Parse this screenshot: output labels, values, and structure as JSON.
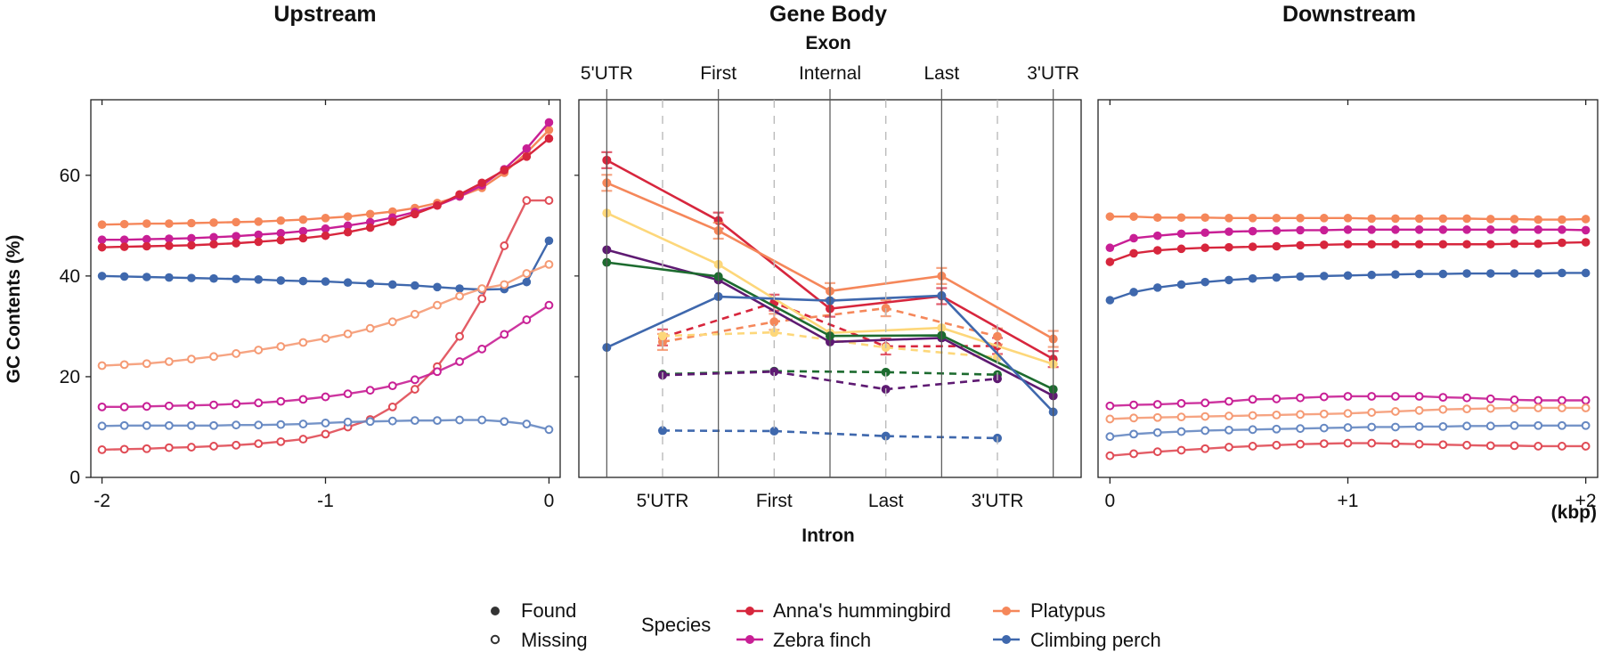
{
  "colors": {
    "Anna's hummingbird": "#d7263d",
    "Zebra finch": "#c81f95",
    "Platypus": "#f5875a",
    "Climbing perch": "#3f68ad",
    "Extra yellow": "#fdd77a",
    "Extra green": "#1d6b2f",
    "Extra purple": "#5e1a72",
    "Missing Anna's hummingbird": "#e04b55",
    "Missing Platypus": "#f59a74",
    "Missing Climbing perch": "#6688c2"
  },
  "chart_data": {
    "type": "line",
    "ylabel": "GC Contents (%)",
    "ylim": [
      0,
      75
    ],
    "yticks": [
      "0",
      "20",
      "40",
      "60"
    ],
    "panels": [
      {
        "title": "Upstream",
        "x_ticks": [
          "-2",
          "-1",
          "0"
        ],
        "x_tick_values": [
          -2,
          -1,
          0
        ],
        "xlim": [
          -2.05,
          0.05
        ],
        "x": [
          -2,
          -1.9,
          -1.8,
          -1.7,
          -1.6,
          -1.5,
          -1.4,
          -1.3,
          -1.2,
          -1.1,
          -1,
          -0.9,
          -0.8,
          -0.7,
          -0.6,
          -0.5,
          -0.4,
          -0.3,
          -0.2,
          -0.1,
          0
        ],
        "series": [
          {
            "name": "Platypus",
            "status": "Found",
            "values": [
              50.2,
              50.3,
              50.4,
              50.4,
              50.5,
              50.6,
              50.7,
              50.8,
              51.0,
              51.2,
              51.5,
              51.8,
              52.3,
              52.8,
              53.5,
              54.5,
              55.8,
              57.5,
              60.5,
              64.5,
              69
            ]
          },
          {
            "name": "Zebra finch",
            "status": "Found",
            "values": [
              47.2,
              47.2,
              47.3,
              47.4,
              47.5,
              47.7,
              47.9,
              48.2,
              48.5,
              48.9,
              49.4,
              50.0,
              50.7,
              51.6,
              52.7,
              54.0,
              55.8,
              58.0,
              61.2,
              65.3,
              70.5
            ]
          },
          {
            "name": "Anna's hummingbird",
            "status": "Found",
            "values": [
              45.7,
              45.8,
              45.9,
              46.0,
              46.1,
              46.3,
              46.5,
              46.8,
              47.1,
              47.5,
              48.0,
              48.7,
              49.6,
              50.8,
              52.3,
              54.0,
              56.2,
              58.5,
              61.0,
              63.7,
              67.3
            ]
          },
          {
            "name": "Climbing perch",
            "status": "Found",
            "values": [
              40.0,
              39.9,
              39.8,
              39.7,
              39.6,
              39.5,
              39.4,
              39.3,
              39.1,
              39.0,
              38.9,
              38.7,
              38.5,
              38.3,
              38.1,
              37.8,
              37.5,
              37.3,
              37.4,
              38.8,
              47.0
            ]
          },
          {
            "name": "Anna's hummingbird",
            "status": "Missing",
            "values": [
              5.5,
              5.6,
              5.7,
              5.9,
              6.0,
              6.2,
              6.4,
              6.7,
              7.1,
              7.6,
              8.6,
              10.0,
              11.5,
              14.0,
              17.5,
              22.0,
              28.0,
              35.5,
              46.0,
              55.0,
              55.0
            ]
          },
          {
            "name": "Platypus",
            "status": "Missing",
            "values": [
              22.2,
              22.4,
              22.6,
              23.0,
              23.5,
              24.0,
              24.6,
              25.3,
              26.0,
              26.8,
              27.6,
              28.5,
              29.6,
              30.9,
              32.4,
              34.2,
              36.0,
              37.5,
              38.3,
              40.5,
              42.3
            ]
          },
          {
            "name": "Zebra finch",
            "status": "Missing",
            "values": [
              14.0,
              14.0,
              14.1,
              14.2,
              14.3,
              14.4,
              14.6,
              14.8,
              15.1,
              15.5,
              16.0,
              16.6,
              17.3,
              18.2,
              19.4,
              21.0,
              23.0,
              25.5,
              28.4,
              31.3,
              34.2
            ]
          },
          {
            "name": "Climbing perch",
            "status": "Missing",
            "values": [
              10.2,
              10.3,
              10.3,
              10.3,
              10.3,
              10.3,
              10.4,
              10.4,
              10.5,
              10.6,
              10.8,
              11.0,
              11.1,
              11.2,
              11.3,
              11.3,
              11.4,
              11.4,
              11.1,
              10.6,
              9.5
            ]
          }
        ]
      },
      {
        "title": "Gene Body",
        "top_label": "Exon",
        "bottom_label": "Intron",
        "exon_ticks": [
          "5'UTR",
          "First",
          "Internal",
          "Last",
          "3'UTR"
        ],
        "exon_positions": [
          0,
          2,
          4,
          6,
          8
        ],
        "intron_ticks": [
          "5'UTR",
          "First",
          "Last",
          "3'UTR"
        ],
        "intron_positions": [
          1,
          3,
          5,
          7
        ],
        "xlim": [
          -0.5,
          8.5
        ],
        "exon_series": [
          {
            "color_key": "Anna's hummingbird",
            "x": [
              0,
              2,
              4,
              6,
              8
            ],
            "values": [
              63,
              51,
              33.5,
              36,
              23.5
            ],
            "error_bars": true
          },
          {
            "color_key": "Platypus",
            "x": [
              0,
              2,
              4,
              6,
              8
            ],
            "values": [
              58.5,
              49,
              37,
              40,
              27.5
            ],
            "error_bars": true
          },
          {
            "color_key": "Extra yellow",
            "x": [
              0,
              2,
              4,
              6,
              8
            ],
            "values": [
              52.5,
              42.3,
              28.7,
              29.7,
              22.5
            ],
            "error_bars": false
          },
          {
            "color_key": "Extra purple",
            "x": [
              0,
              2,
              4,
              6,
              8
            ],
            "values": [
              45.2,
              39.2,
              26.9,
              27.7,
              16.2
            ],
            "error_bars": false
          },
          {
            "color_key": "Extra green",
            "x": [
              0,
              2,
              4,
              6,
              8
            ],
            "values": [
              42.7,
              39.9,
              28.1,
              28.2,
              17.5
            ],
            "error_bars": false
          },
          {
            "color_key": "Climbing perch",
            "x": [
              0,
              2,
              4,
              6,
              8
            ],
            "values": [
              25.8,
              35.9,
              35.1,
              36.1,
              13.0
            ],
            "error_bars": false
          }
        ],
        "intron_series": [
          {
            "color_key": "Anna's hummingbird",
            "x": [
              1,
              3,
              5,
              7
            ],
            "values": [
              27.8,
              34.7,
              26.0,
              26.1
            ],
            "error_bars": true
          },
          {
            "color_key": "Platypus",
            "x": [
              1,
              3,
              5,
              7
            ],
            "values": [
              26.9,
              30.9,
              33.6,
              28.0
            ],
            "error_bars": true
          },
          {
            "color_key": "Extra yellow",
            "x": [
              1,
              3,
              5,
              7
            ],
            "values": [
              28.1,
              28.8,
              25.8,
              23.8
            ],
            "error_bars": false
          },
          {
            "color_key": "Extra green",
            "x": [
              1,
              3,
              5,
              7
            ],
            "values": [
              20.5,
              21.1,
              20.9,
              20.4
            ],
            "error_bars": false
          },
          {
            "color_key": "Extra purple",
            "x": [
              1,
              3,
              5,
              7
            ],
            "values": [
              20.3,
              21.0,
              17.5,
              19.6
            ],
            "error_bars": false
          },
          {
            "color_key": "Climbing perch",
            "x": [
              1,
              3,
              5,
              7
            ],
            "values": [
              9.3,
              9.2,
              8.2,
              7.8
            ],
            "error_bars": false
          }
        ]
      },
      {
        "title": "Downstream",
        "x_ticks": [
          "0",
          "+1",
          "+2"
        ],
        "x_tick_values": [
          0,
          1,
          2
        ],
        "xlim": [
          -0.05,
          2.05
        ],
        "unit_label": "(kbp)",
        "x": [
          0,
          0.1,
          0.2,
          0.3,
          0.4,
          0.5,
          0.6,
          0.7,
          0.8,
          0.9,
          1,
          1.1,
          1.2,
          1.3,
          1.4,
          1.5,
          1.6,
          1.7,
          1.8,
          1.9,
          2
        ],
        "series": [
          {
            "name": "Platypus",
            "status": "Found",
            "values": [
              51.8,
              51.8,
              51.6,
              51.6,
              51.6,
              51.5,
              51.5,
              51.5,
              51.5,
              51.5,
              51.5,
              51.4,
              51.4,
              51.4,
              51.4,
              51.4,
              51.3,
              51.3,
              51.2,
              51.2,
              51.3
            ]
          },
          {
            "name": "Zebra finch",
            "status": "Found",
            "values": [
              45.6,
              47.5,
              48.0,
              48.4,
              48.6,
              48.8,
              48.9,
              49.0,
              49.1,
              49.1,
              49.2,
              49.2,
              49.2,
              49.2,
              49.2,
              49.2,
              49.2,
              49.2,
              49.2,
              49.2,
              49.1
            ]
          },
          {
            "name": "Anna's hummingbird",
            "status": "Found",
            "values": [
              42.8,
              44.5,
              45.1,
              45.4,
              45.6,
              45.7,
              45.8,
              45.9,
              46.1,
              46.2,
              46.3,
              46.3,
              46.3,
              46.3,
              46.3,
              46.3,
              46.3,
              46.4,
              46.4,
              46.6,
              46.7
            ]
          },
          {
            "name": "Climbing perch",
            "status": "Found",
            "values": [
              35.2,
              36.8,
              37.7,
              38.3,
              38.8,
              39.2,
              39.5,
              39.7,
              39.9,
              40.0,
              40.1,
              40.2,
              40.3,
              40.4,
              40.4,
              40.5,
              40.5,
              40.5,
              40.5,
              40.6,
              40.6
            ]
          },
          {
            "name": "Zebra finch",
            "status": "Missing",
            "values": [
              14.2,
              14.4,
              14.5,
              14.7,
              14.8,
              15.1,
              15.5,
              15.6,
              15.8,
              16.0,
              16.1,
              16.1,
              16.1,
              16.1,
              15.9,
              15.8,
              15.6,
              15.4,
              15.3,
              15.3,
              15.3
            ]
          },
          {
            "name": "Platypus",
            "status": "Missing",
            "values": [
              11.6,
              11.8,
              11.9,
              12.0,
              12.1,
              12.2,
              12.3,
              12.4,
              12.5,
              12.6,
              12.7,
              12.9,
              13.1,
              13.3,
              13.5,
              13.6,
              13.7,
              13.8,
              13.8,
              13.8,
              13.8
            ]
          },
          {
            "name": "Climbing perch",
            "status": "Missing",
            "values": [
              8.1,
              8.6,
              8.9,
              9.1,
              9.3,
              9.4,
              9.5,
              9.6,
              9.7,
              9.8,
              9.9,
              10.0,
              10.0,
              10.1,
              10.1,
              10.2,
              10.2,
              10.3,
              10.3,
              10.3,
              10.3
            ]
          },
          {
            "name": "Anna's hummingbird",
            "status": "Missing",
            "values": [
              4.3,
              4.7,
              5.1,
              5.4,
              5.7,
              6.0,
              6.2,
              6.4,
              6.6,
              6.7,
              6.8,
              6.8,
              6.7,
              6.6,
              6.5,
              6.4,
              6.3,
              6.3,
              6.2,
              6.2,
              6.2
            ]
          }
        ]
      }
    ],
    "legend": {
      "status": [
        "Found",
        "Missing"
      ],
      "species_title": "Species",
      "species": [
        "Anna's hummingbird",
        "Zebra finch",
        "Platypus",
        "Climbing perch"
      ],
      "placement": "bottom"
    }
  }
}
